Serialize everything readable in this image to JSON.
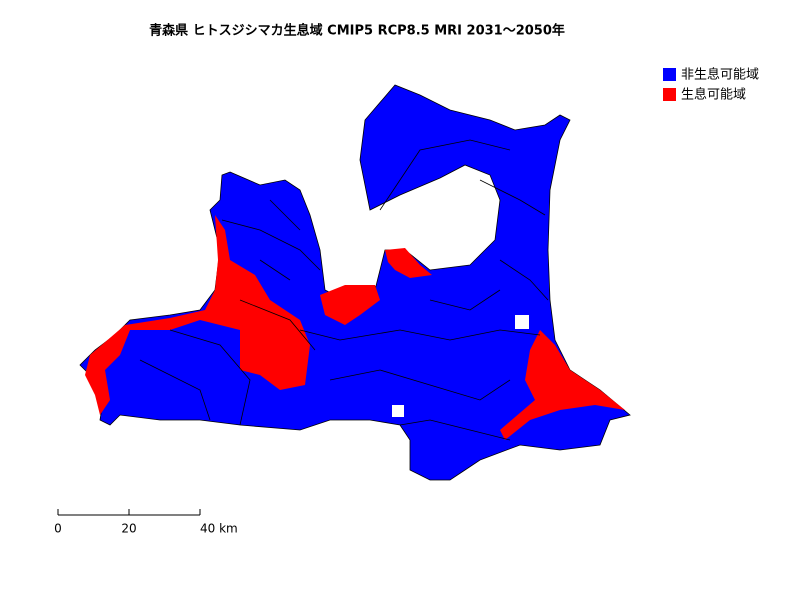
{
  "title": "青森県 ヒトスジシマカ生息域 CMIP5 RCP8.5 MRI 2031～2050年",
  "legend": [
    {
      "label": "非生息可能域",
      "color": "#0000ff"
    },
    {
      "label": "生息可能域",
      "color": "#ff0000"
    }
  ],
  "scale_bar": {
    "labels": [
      "0",
      "20",
      "40 km"
    ]
  }
}
